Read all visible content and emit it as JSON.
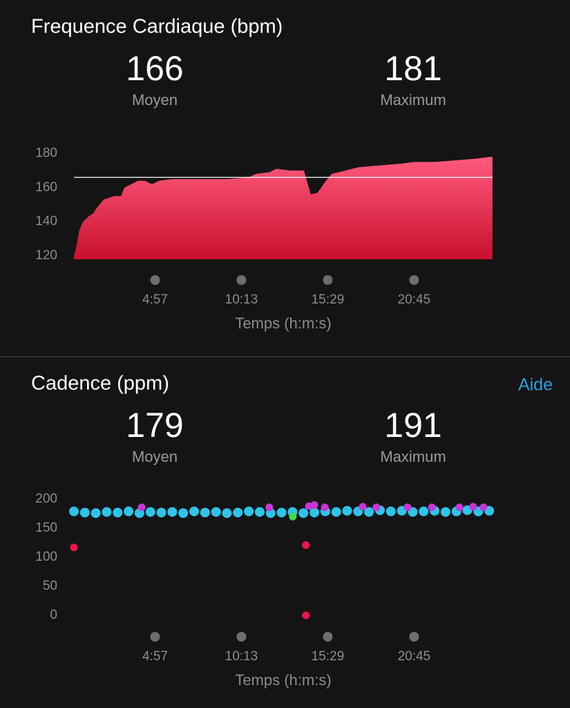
{
  "chart_data": [
    {
      "type": "area",
      "title": "Frequence Cardiaque (bpm)",
      "stats": [
        {
          "value": 166,
          "label": "Moyen"
        },
        {
          "value": 181,
          "label": "Maximum"
        }
      ],
      "x": [
        0,
        8,
        20,
        33,
        53,
        71,
        83,
        109,
        147,
        172,
        185,
        210,
        235,
        260,
        286,
        311,
        362,
        412,
        488,
        564,
        640,
        665,
        715,
        741,
        791,
        842,
        854,
        867,
        892,
        918,
        943,
        994,
        1044,
        1120,
        1196,
        1246,
        1322,
        1398,
        1474,
        1524,
        1532
      ],
      "values": [
        120,
        125,
        135,
        140,
        143,
        145,
        148,
        153,
        155,
        155,
        160,
        162,
        164,
        164,
        162,
        164,
        165,
        165,
        165,
        165,
        166,
        168,
        169,
        171,
        170,
        170,
        163,
        156,
        157,
        163,
        168,
        170,
        172,
        173,
        174,
        175,
        175,
        176,
        177,
        178,
        178
      ],
      "color": "#e8264f",
      "xlim": [
        0,
        1540
      ],
      "xticks": [
        {
          "value": 297,
          "label": "4:57"
        },
        {
          "value": 613,
          "label": "10:13"
        },
        {
          "value": 929,
          "label": "15:29"
        },
        {
          "value": 1245,
          "label": "20:45"
        }
      ],
      "ylim": [
        118,
        182
      ],
      "yticks": [
        120,
        140,
        160,
        180
      ],
      "xlabel": "Temps (h:m:s)"
    },
    {
      "type": "scatter",
      "title": "Cadence (ppm)",
      "help": "Aide",
      "stats": [
        {
          "value": 179,
          "label": "Moyen"
        },
        {
          "value": 191,
          "label": "Maximum"
        }
      ],
      "series": [
        {
          "color": "#2ec4e8",
          "x": [
            0,
            40,
            80,
            120,
            160,
            200,
            240,
            280,
            320,
            360,
            400,
            440,
            480,
            520,
            560,
            600,
            640,
            680,
            720,
            760,
            800,
            840,
            880,
            920,
            960,
            1000,
            1040,
            1080,
            1120,
            1160,
            1200,
            1240,
            1280,
            1320,
            1360,
            1400,
            1440,
            1480,
            1520
          ],
          "values": [
            179,
            177,
            176,
            178,
            177,
            179,
            176,
            178,
            177,
            178,
            176,
            179,
            177,
            178,
            176,
            177,
            179,
            178,
            176,
            177,
            178,
            176,
            177,
            179,
            178,
            180,
            179,
            178,
            181,
            179,
            180,
            178,
            179,
            180,
            178,
            179,
            181,
            179,
            180
          ]
        },
        {
          "color": "#c935d6",
          "x": [
            248,
            715,
            860,
            880,
            918,
            1057,
            1107,
            1221,
            1310,
            1411,
            1461,
            1499
          ],
          "values": [
            186,
            186,
            188,
            190,
            186,
            187,
            186,
            186,
            186,
            186,
            187,
            186
          ]
        },
        {
          "color": "#3ddc4a",
          "x": [
            801
          ],
          "values": [
            170
          ]
        },
        {
          "color": "#f0154a",
          "x": [
            0,
            849,
            849
          ],
          "values": [
            117,
            121,
            0
          ]
        }
      ],
      "xlim": [
        0,
        1540
      ],
      "xticks": [
        {
          "value": 297,
          "label": "4:57"
        },
        {
          "value": 613,
          "label": "10:13"
        },
        {
          "value": 929,
          "label": "15:29"
        },
        {
          "value": 1245,
          "label": "20:45"
        }
      ],
      "ylim": [
        0,
        200
      ],
      "yticks": [
        0,
        50,
        100,
        150,
        200
      ],
      "xlabel": "Temps (h:m:s)"
    }
  ]
}
